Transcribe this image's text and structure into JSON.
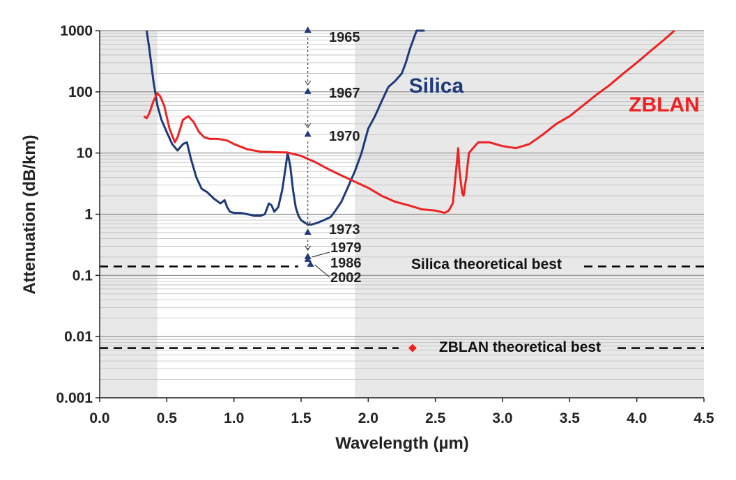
{
  "chart_data": {
    "type": "line",
    "title": "",
    "xlabel": "Wavelength (µm)",
    "ylabel": "Attenuation (dB/km)",
    "xlim": [
      0.0,
      4.5
    ],
    "ylim": [
      0.001,
      1000
    ],
    "yscale": "log",
    "x_ticks": [
      0.0,
      0.5,
      1.0,
      1.5,
      2.0,
      2.5,
      3.0,
      3.5,
      4.0,
      4.5
    ],
    "x_tick_labels": [
      "0.0",
      "0.5",
      "1.0",
      "1.5",
      "2.0",
      "2.5",
      "3.0",
      "3.5",
      "4.0",
      "4.5"
    ],
    "y_ticks": [
      0.001,
      0.01,
      0.1,
      1,
      10,
      100,
      1000
    ],
    "y_tick_labels": [
      "0.001",
      "0.01",
      "0.1",
      "1",
      "10",
      "100",
      "1000"
    ],
    "shaded_regions": [
      {
        "x_range": [
          0.0,
          0.43
        ],
        "color": "#e8e8e8"
      },
      {
        "x_range": [
          1.9,
          4.5
        ],
        "color": "#e8e8e8"
      }
    ],
    "series": [
      {
        "name": "Silica",
        "color": "#1f3a7a",
        "x": [
          0.35,
          0.37,
          0.4,
          0.43,
          0.46,
          0.5,
          0.54,
          0.58,
          0.62,
          0.65,
          0.68,
          0.72,
          0.76,
          0.8,
          0.85,
          0.9,
          0.93,
          0.95,
          0.97,
          1.0,
          1.05,
          1.1,
          1.15,
          1.2,
          1.23,
          1.26,
          1.28,
          1.3,
          1.33,
          1.36,
          1.38,
          1.4,
          1.42,
          1.44,
          1.46,
          1.48,
          1.5,
          1.53,
          1.55,
          1.58,
          1.62,
          1.67,
          1.72,
          1.75,
          1.8,
          1.85,
          1.9,
          1.95,
          2.0,
          2.05,
          2.1,
          2.15,
          2.2,
          2.25,
          2.28,
          2.31,
          2.36,
          2.42
        ],
        "y": [
          1000,
          500,
          150,
          60,
          35,
          22,
          14,
          11,
          14,
          15,
          8,
          4,
          2.6,
          2.3,
          1.8,
          1.5,
          1.7,
          1.3,
          1.1,
          1.05,
          1.05,
          1.0,
          0.95,
          0.95,
          1.0,
          1.5,
          1.4,
          1.1,
          1.3,
          2.5,
          5,
          10,
          6,
          2.5,
          1.3,
          0.95,
          0.8,
          0.72,
          0.68,
          0.68,
          0.72,
          0.8,
          0.9,
          1.1,
          1.6,
          2.8,
          5,
          10,
          25,
          40,
          70,
          120,
          150,
          200,
          300,
          500,
          1000,
          1000
        ]
      },
      {
        "name": "ZBLAN",
        "color": "#ee2222",
        "x": [
          0.33,
          0.35,
          0.37,
          0.4,
          0.43,
          0.45,
          0.48,
          0.52,
          0.56,
          0.58,
          0.62,
          0.66,
          0.7,
          0.74,
          0.78,
          0.82,
          0.88,
          0.95,
          1.0,
          1.1,
          1.2,
          1.3,
          1.4,
          1.5,
          1.6,
          1.7,
          1.8,
          1.9,
          2.0,
          2.1,
          2.2,
          2.3,
          2.4,
          2.5,
          2.57,
          2.6,
          2.63,
          2.66,
          2.67,
          2.68,
          2.7,
          2.71,
          2.73,
          2.75,
          2.78,
          2.82,
          2.9,
          3.0,
          3.1,
          3.2,
          3.3,
          3.4,
          3.5,
          3.6,
          3.7,
          3.8,
          3.9,
          4.0,
          4.1,
          4.2,
          4.28
        ],
        "y": [
          40,
          37,
          45,
          70,
          95,
          85,
          60,
          25,
          15,
          18,
          35,
          40,
          32,
          22,
          18,
          17,
          17,
          16,
          14,
          11.5,
          10.5,
          10.3,
          10.2,
          9,
          7.2,
          5.5,
          4.3,
          3.4,
          2.7,
          2.0,
          1.6,
          1.4,
          1.2,
          1.15,
          1.05,
          1.15,
          1.5,
          7,
          12,
          5,
          2.2,
          2.0,
          4,
          10,
          12,
          15,
          15,
          13,
          12,
          14,
          20,
          30,
          40,
          60,
          90,
          130,
          200,
          300,
          460,
          700,
          1000
        ]
      }
    ],
    "year_markers": {
      "color": "#1f3a7a",
      "points": [
        {
          "x": 1.55,
          "y": 1000,
          "label": "1965"
        },
        {
          "x": 1.55,
          "y": 100,
          "label": "1967"
        },
        {
          "x": 1.55,
          "y": 20,
          "label": "1970"
        },
        {
          "x": 1.55,
          "y": 0.5,
          "label": "1973"
        },
        {
          "x": 1.55,
          "y": 0.2,
          "label": "1979"
        },
        {
          "x": 1.55,
          "y": 0.18,
          "label": "1986"
        },
        {
          "x": 1.57,
          "y": 0.15,
          "label": "2002"
        }
      ]
    },
    "reference_lines": [
      {
        "label": "Silica theoretical best",
        "y": 0.14,
        "style": "dashed",
        "color": "#000000"
      },
      {
        "label": "ZBLAN theoretical best",
        "y": 0.0065,
        "style": "dashed",
        "color": "#000000"
      }
    ],
    "zblan_theoretical_point": {
      "x": 2.33,
      "y": 0.0065,
      "color": "#ee2222"
    },
    "annotations": [
      {
        "text": "Silica",
        "x": 2.15,
        "y": 100,
        "color": "#1f3a7a"
      },
      {
        "text": "ZBLAN",
        "x": 4.13,
        "y": 100,
        "color": "#ee2222"
      }
    ]
  }
}
